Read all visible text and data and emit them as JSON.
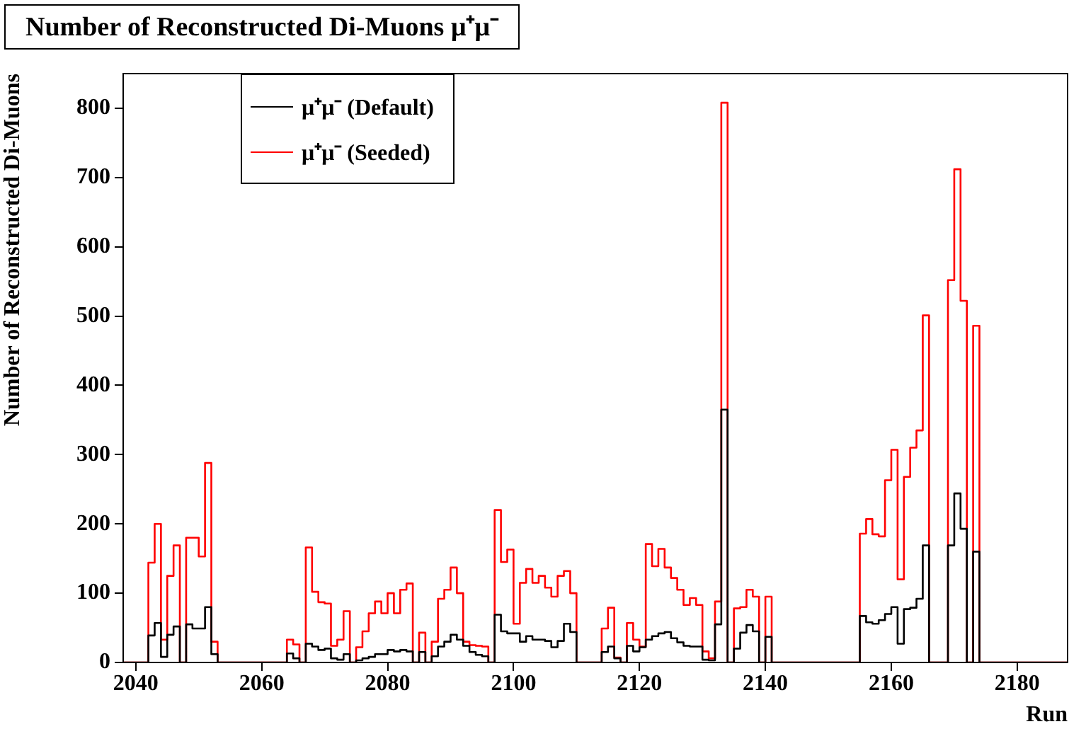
{
  "chart_data": {
    "type": "histogram",
    "title": "Number of Reconstructed Di-Muons μ⁺μ⁻",
    "xlabel": "Run",
    "ylabel": "Number of Reconstructed Di-Muons",
    "bins": [
      2038,
      2039,
      2040,
      2041,
      2042,
      2043,
      2044,
      2045,
      2046,
      2047,
      2048,
      2049,
      2050,
      2051,
      2052,
      2053,
      2054,
      2055,
      2056,
      2057,
      2058,
      2059,
      2060,
      2061,
      2062,
      2063,
      2064,
      2065,
      2066,
      2067,
      2068,
      2069,
      2070,
      2071,
      2072,
      2073,
      2074,
      2075,
      2076,
      2077,
      2078,
      2079,
      2080,
      2081,
      2082,
      2083,
      2084,
      2085,
      2086,
      2087,
      2088,
      2089,
      2090,
      2091,
      2092,
      2093,
      2094,
      2095,
      2096,
      2097,
      2098,
      2099,
      2100,
      2101,
      2102,
      2103,
      2104,
      2105,
      2106,
      2107,
      2108,
      2109,
      2110,
      2111,
      2112,
      2113,
      2114,
      2115,
      2116,
      2117,
      2118,
      2119,
      2120,
      2121,
      2122,
      2123,
      2124,
      2125,
      2126,
      2127,
      2128,
      2129,
      2130,
      2131,
      2132,
      2133,
      2134,
      2135,
      2136,
      2137,
      2138,
      2139,
      2140,
      2141,
      2142,
      2143,
      2144,
      2145,
      2146,
      2147,
      2148,
      2149,
      2150,
      2151,
      2152,
      2153,
      2154,
      2155,
      2156,
      2157,
      2158,
      2159,
      2160,
      2161,
      2162,
      2163,
      2164,
      2165,
      2166,
      2167,
      2168,
      2169,
      2170,
      2171,
      2172,
      2173,
      2174,
      2175,
      2176,
      2177,
      2178,
      2179,
      2180,
      2181,
      2182,
      2183,
      2184,
      2185,
      2186,
      2187,
      2188
    ],
    "series": [
      {
        "name": "μ⁺μ⁻ (Default)",
        "color": "#000000",
        "values": [
          0,
          0,
          0,
          0,
          39,
          57,
          8,
          40,
          52,
          0,
          55,
          49,
          49,
          80,
          12,
          0,
          0,
          0,
          0,
          0,
          0,
          0,
          0,
          0,
          0,
          0,
          13,
          6,
          0,
          27,
          23,
          18,
          20,
          6,
          4,
          12,
          0,
          3,
          6,
          8,
          12,
          12,
          18,
          16,
          18,
          16,
          0,
          15,
          0,
          9,
          23,
          30,
          40,
          33,
          24,
          15,
          11,
          9,
          0,
          69,
          45,
          42,
          42,
          30,
          38,
          33,
          33,
          31,
          22,
          31,
          56,
          44,
          0,
          0,
          0,
          0,
          15,
          23,
          6,
          0,
          24,
          16,
          22,
          33,
          38,
          42,
          44,
          35,
          29,
          24,
          23,
          23,
          4,
          3,
          55,
          365,
          0,
          20,
          43,
          54,
          45,
          0,
          37,
          0,
          0,
          0,
          0,
          0,
          0,
          0,
          0,
          0,
          0,
          0,
          0,
          0,
          0,
          67,
          58,
          56,
          61,
          70,
          80,
          27,
          77,
          79,
          92,
          169,
          0,
          0,
          0,
          169,
          244,
          193,
          0,
          160,
          0,
          0,
          0,
          0,
          0,
          0,
          0,
          0,
          0,
          0,
          0,
          0,
          0,
          0
        ]
      },
      {
        "name": "μ⁺μ⁻ (Seeded)",
        "color": "#ff0000",
        "values": [
          0,
          0,
          0,
          0,
          144,
          200,
          33,
          125,
          169,
          0,
          180,
          180,
          153,
          288,
          30,
          0,
          0,
          0,
          0,
          0,
          0,
          0,
          0,
          0,
          0,
          0,
          33,
          26,
          0,
          166,
          102,
          87,
          85,
          24,
          33,
          74,
          0,
          22,
          45,
          71,
          88,
          71,
          100,
          71,
          105,
          114,
          0,
          43,
          0,
          30,
          92,
          105,
          137,
          100,
          30,
          25,
          24,
          23,
          0,
          220,
          145,
          163,
          56,
          115,
          135,
          115,
          125,
          108,
          95,
          125,
          132,
          100,
          0,
          0,
          0,
          0,
          49,
          79,
          7,
          0,
          57,
          33,
          23,
          171,
          139,
          164,
          137,
          122,
          105,
          83,
          93,
          83,
          16,
          6,
          88,
          808,
          0,
          78,
          80,
          105,
          95,
          0,
          95,
          0,
          0,
          0,
          0,
          0,
          0,
          0,
          0,
          0,
          0,
          0,
          0,
          0,
          0,
          186,
          207,
          185,
          182,
          263,
          307,
          120,
          268,
          310,
          335,
          501,
          0,
          0,
          0,
          552,
          712,
          522,
          0,
          486,
          0,
          0,
          0,
          0,
          0,
          0,
          0,
          0,
          0,
          0,
          0,
          0,
          0,
          0
        ]
      }
    ],
    "xlim": [
      2038,
      2188
    ],
    "xticks": [
      2040,
      2060,
      2080,
      2100,
      2120,
      2140,
      2160,
      2180
    ],
    "ylim": [
      0,
      850
    ],
    "yticks": [
      0,
      100,
      200,
      300,
      400,
      500,
      600,
      700,
      800
    ],
    "legend": "top left"
  }
}
